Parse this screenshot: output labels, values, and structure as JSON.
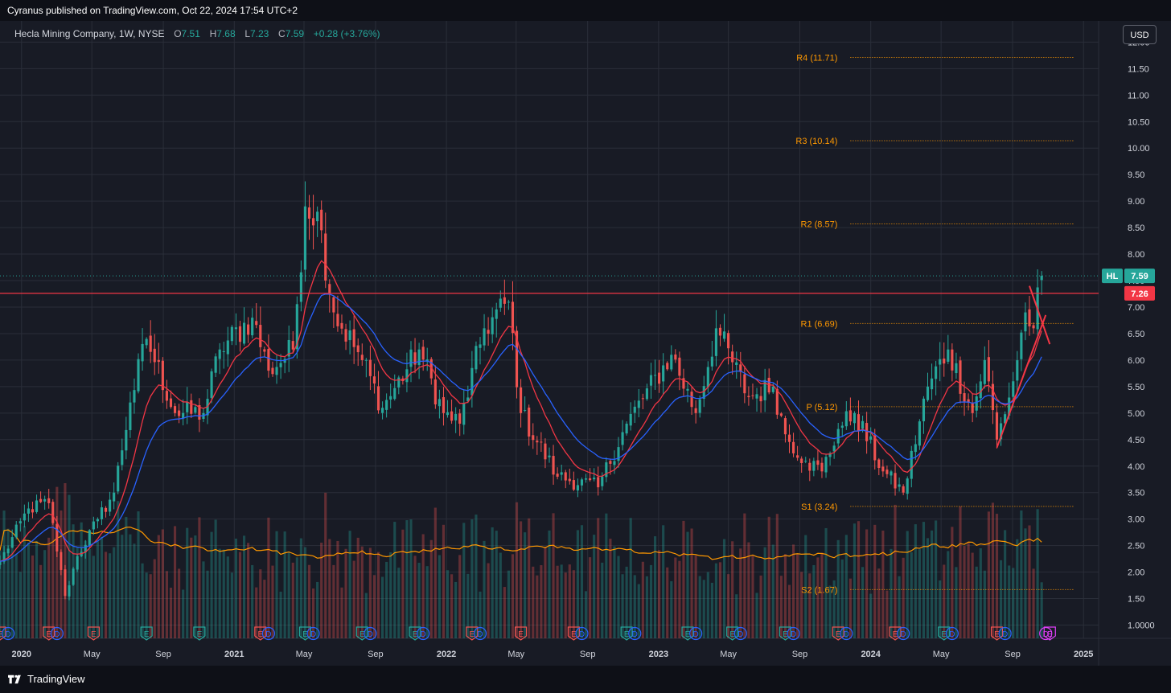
{
  "publish_line": "Cyranus published on TradingView.com, Oct 22, 2024 17:54 UTC+2",
  "legend": {
    "title": "Hecla Mining Company, 1W, NYSE",
    "o_label": "O",
    "o_value": "7.51",
    "h_label": "H",
    "h_value": "7.68",
    "l_label": "L",
    "l_value": "7.23",
    "c_label": "C",
    "c_value": "7.59",
    "change": "+0.28 (+3.76%)"
  },
  "currency_button": "USD",
  "brand": "TradingView",
  "colors": {
    "up": "#26a69a",
    "down": "#ef5350",
    "ema_fast": "#f23645",
    "ema_slow": "#2962ff",
    "volume_ma": "#ff9800",
    "pivot": "#ff9800",
    "resistance_line": "#f23645",
    "background": "#181b25",
    "grid": "#2a2e39",
    "axis_text": "#d1d4dc"
  },
  "chart_data": {
    "type": "candlestick",
    "title": "Hecla Mining Company, 1W, NYSE",
    "symbol": "HL",
    "interval": "1W",
    "y_scale": "linear",
    "ylim": [
      0.75,
      12.4
    ],
    "y_ticks": [
      "1.0000",
      "1.50",
      "2.00",
      "2.50",
      "3.00",
      "3.50",
      "4.00",
      "4.50",
      "5.00",
      "5.50",
      "6.00",
      "6.50",
      "7.00",
      "7.50",
      "8.00",
      "8.50",
      "9.00",
      "9.50",
      "10.00",
      "10.50",
      "11.00",
      "11.50",
      "12.00"
    ],
    "x_range": [
      "2019-11-25",
      "2025-01-27"
    ],
    "x_ticks": [
      {
        "label": "2020",
        "date": "2020-01-01"
      },
      {
        "label": "May",
        "date": "2020-05-01"
      },
      {
        "label": "Sep",
        "date": "2020-09-01"
      },
      {
        "label": "2021",
        "date": "2021-01-01"
      },
      {
        "label": "May",
        "date": "2021-05-01"
      },
      {
        "label": "Sep",
        "date": "2021-09-01"
      },
      {
        "label": "2022",
        "date": "2022-01-01"
      },
      {
        "label": "May",
        "date": "2022-05-01"
      },
      {
        "label": "Sep",
        "date": "2022-09-01"
      },
      {
        "label": "2023",
        "date": "2023-01-01"
      },
      {
        "label": "May",
        "date": "2023-05-01"
      },
      {
        "label": "Sep",
        "date": "2023-09-01"
      },
      {
        "label": "2024",
        "date": "2024-01-01"
      },
      {
        "label": "May",
        "date": "2024-05-01"
      },
      {
        "label": "Sep",
        "date": "2024-09-01"
      },
      {
        "label": "2025",
        "date": "2025-01-01"
      }
    ],
    "grid": true,
    "last_price": {
      "label": "HL",
      "value": 7.59
    },
    "horizontal_line": {
      "value": 7.26,
      "label": "7.26"
    },
    "pivots": [
      {
        "label": "R4 (11.71)",
        "value": 11.71
      },
      {
        "label": "R3 (10.14)",
        "value": 10.14
      },
      {
        "label": "R2 (8.57)",
        "value": 8.57
      },
      {
        "label": "R1 (6.69)",
        "value": 6.69
      },
      {
        "label": "P (5.12)",
        "value": 5.12
      },
      {
        "label": "S1 (3.24)",
        "value": 3.24
      },
      {
        "label": "S2 (1.67)",
        "value": 1.67
      }
    ],
    "pivot_start": "2023-11-27",
    "pivot_end": "2024-12-16",
    "close_anchors": [
      {
        "date": "2019-11-25",
        "close": 2.2
      },
      {
        "date": "2020-01-13",
        "close": 3.2
      },
      {
        "date": "2020-02-17",
        "close": 3.3
      },
      {
        "date": "2020-03-16",
        "close": 1.55
      },
      {
        "date": "2020-04-06",
        "close": 2.3
      },
      {
        "date": "2020-05-11",
        "close": 3.0
      },
      {
        "date": "2020-06-08",
        "close": 3.5
      },
      {
        "date": "2020-07-06",
        "close": 5.2
      },
      {
        "date": "2020-08-03",
        "close": 6.4
      },
      {
        "date": "2020-09-21",
        "close": 5.0
      },
      {
        "date": "2020-11-09",
        "close": 5.0
      },
      {
        "date": "2020-12-07",
        "close": 6.2
      },
      {
        "date": "2021-02-01",
        "close": 6.8
      },
      {
        "date": "2021-03-01",
        "close": 5.8
      },
      {
        "date": "2021-04-12",
        "close": 6.2
      },
      {
        "date": "2021-05-03",
        "close": 8.9
      },
      {
        "date": "2021-05-24",
        "close": 8.8
      },
      {
        "date": "2021-06-21",
        "close": 6.9
      },
      {
        "date": "2021-08-09",
        "close": 6.0
      },
      {
        "date": "2021-09-13",
        "close": 5.1
      },
      {
        "date": "2021-11-15",
        "close": 6.2
      },
      {
        "date": "2021-12-27",
        "close": 5.0
      },
      {
        "date": "2022-01-24",
        "close": 4.8
      },
      {
        "date": "2022-03-07",
        "close": 6.6
      },
      {
        "date": "2022-04-18",
        "close": 7.1
      },
      {
        "date": "2022-05-09",
        "close": 5.0
      },
      {
        "date": "2022-07-11",
        "close": 3.8
      },
      {
        "date": "2022-09-19",
        "close": 3.6
      },
      {
        "date": "2022-11-07",
        "close": 4.8
      },
      {
        "date": "2023-01-23",
        "close": 6.1
      },
      {
        "date": "2023-03-06",
        "close": 5.0
      },
      {
        "date": "2023-04-10",
        "close": 6.6
      },
      {
        "date": "2023-06-05",
        "close": 5.3
      },
      {
        "date": "2023-07-17",
        "close": 5.5
      },
      {
        "date": "2023-08-07",
        "close": 4.6
      },
      {
        "date": "2023-09-11",
        "close": 4.1
      },
      {
        "date": "2023-10-09",
        "close": 3.9
      },
      {
        "date": "2023-11-06",
        "close": 4.7
      },
      {
        "date": "2023-12-04",
        "close": 5.0
      },
      {
        "date": "2024-01-22",
        "close": 3.9
      },
      {
        "date": "2024-02-26",
        "close": 3.5
      },
      {
        "date": "2024-04-08",
        "close": 5.5
      },
      {
        "date": "2024-05-13",
        "close": 6.2
      },
      {
        "date": "2024-06-24",
        "close": 5.0
      },
      {
        "date": "2024-07-15",
        "close": 6.0
      },
      {
        "date": "2024-08-05",
        "close": 4.5
      },
      {
        "date": "2024-09-02",
        "close": 5.6
      },
      {
        "date": "2024-09-23",
        "close": 6.9
      },
      {
        "date": "2024-10-07",
        "close": 6.6
      },
      {
        "date": "2024-10-21",
        "close": 7.59
      }
    ],
    "series": [
      {
        "name": "EMA fast",
        "type": "line",
        "color": "#f23645"
      },
      {
        "name": "EMA slow",
        "type": "line",
        "color": "#2962ff"
      },
      {
        "name": "Volume",
        "type": "bar"
      },
      {
        "name": "Volume MA",
        "type": "line",
        "color": "#ff9800"
      }
    ],
    "trend_lines": [
      {
        "from": {
          "date": "2024-08-05",
          "close": 4.35
        },
        "to": {
          "date": "2024-10-28",
          "close": 6.85
        }
      },
      {
        "from": {
          "date": "2024-09-30",
          "close": 7.4
        },
        "to": {
          "date": "2024-11-04",
          "close": 6.3
        }
      }
    ],
    "event_markers": [
      {
        "type": "E",
        "date": "2019-11-25",
        "color": "#ef5350"
      },
      {
        "type": "D",
        "date": "2019-12-09",
        "color": "#2962ff"
      },
      {
        "type": "E",
        "date": "2020-02-17",
        "color": "#ef5350"
      },
      {
        "type": "D",
        "date": "2020-03-02",
        "color": "#2962ff"
      },
      {
        "type": "E",
        "date": "2020-05-04",
        "color": "#ef5350"
      },
      {
        "type": "E",
        "date": "2020-08-03",
        "color": "#26a69a"
      },
      {
        "type": "E",
        "date": "2020-11-02",
        "color": "#26a69a"
      },
      {
        "type": "E",
        "date": "2021-02-15",
        "color": "#ef5350"
      },
      {
        "type": "D",
        "date": "2021-03-01",
        "color": "#2962ff"
      },
      {
        "type": "E",
        "date": "2021-05-03",
        "color": "#26a69a"
      },
      {
        "type": "D",
        "date": "2021-05-17",
        "color": "#2962ff"
      },
      {
        "type": "E",
        "date": "2021-08-09",
        "color": "#26a69a"
      },
      {
        "type": "D",
        "date": "2021-08-23",
        "color": "#2962ff"
      },
      {
        "type": "E",
        "date": "2021-11-08",
        "color": "#26a69a"
      },
      {
        "type": "D",
        "date": "2021-11-22",
        "color": "#2962ff"
      },
      {
        "type": "E",
        "date": "2022-02-14",
        "color": "#ef5350"
      },
      {
        "type": "D",
        "date": "2022-02-28",
        "color": "#2962ff"
      },
      {
        "type": "E",
        "date": "2022-05-09",
        "color": "#ef5350"
      },
      {
        "type": "E",
        "date": "2022-08-08",
        "color": "#ef5350"
      },
      {
        "type": "D",
        "date": "2022-08-22",
        "color": "#2962ff"
      },
      {
        "type": "E",
        "date": "2022-11-07",
        "color": "#26a69a"
      },
      {
        "type": "D",
        "date": "2022-11-21",
        "color": "#2962ff"
      },
      {
        "type": "E",
        "date": "2023-02-20",
        "color": "#26a69a"
      },
      {
        "type": "D",
        "date": "2023-03-06",
        "color": "#2962ff"
      },
      {
        "type": "E",
        "date": "2023-05-08",
        "color": "#26a69a"
      },
      {
        "type": "D",
        "date": "2023-05-22",
        "color": "#2962ff"
      },
      {
        "type": "E",
        "date": "2023-08-07",
        "color": "#26a69a"
      },
      {
        "type": "D",
        "date": "2023-08-21",
        "color": "#2962ff"
      },
      {
        "type": "E",
        "date": "2023-11-06",
        "color": "#ef5350"
      },
      {
        "type": "D",
        "date": "2023-11-20",
        "color": "#2962ff"
      },
      {
        "type": "E",
        "date": "2024-02-12",
        "color": "#ef5350"
      },
      {
        "type": "D",
        "date": "2024-02-26",
        "color": "#2962ff"
      },
      {
        "type": "E",
        "date": "2024-05-06",
        "color": "#26a69a"
      },
      {
        "type": "D",
        "date": "2024-05-20",
        "color": "#2962ff"
      },
      {
        "type": "E",
        "date": "2024-08-05",
        "color": "#ef5350"
      },
      {
        "type": "D",
        "date": "2024-08-19",
        "color": "#2962ff"
      },
      {
        "type": "D",
        "date": "2024-10-28",
        "color": "#e040fb"
      },
      {
        "type": "E",
        "date": "2024-11-04",
        "color": "#e040fb"
      }
    ]
  }
}
